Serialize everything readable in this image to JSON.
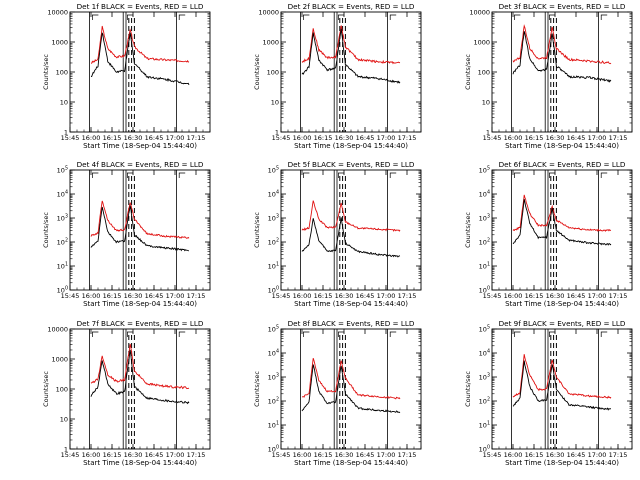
{
  "figure": {
    "x_axis_label": "Start Time (18-Sep-04 15:44:40)",
    "y_axis_label": "Counts/sec",
    "x_tick_labels": [
      "15:45",
      "16:00",
      "16:15",
      "16:30",
      "16:45",
      "17:00",
      "17:15"
    ],
    "colors": {
      "events": "#000000",
      "lld": "#e01010"
    }
  },
  "chart_data": [
    {
      "type": "line",
      "title": "Det 1f  BLACK = Events, RED = LLD",
      "y_axis": "log-linear",
      "y_tick_labels": [
        "1",
        "10",
        "100",
        "1000",
        "10000"
      ],
      "ylim": [
        1,
        10000
      ],
      "x": [
        "16:00",
        "16:05",
        "16:08",
        "16:12",
        "16:18",
        "16:24",
        "16:28",
        "16:31",
        "16:40",
        "16:55",
        "17:10"
      ],
      "series": [
        {
          "color": "red",
          "values": [
            200,
            260,
            3200,
            600,
            320,
            340,
            2500,
            700,
            280,
            250,
            230
          ]
        },
        {
          "color": "black",
          "values": [
            70,
            160,
            2200,
            230,
            100,
            110,
            2000,
            200,
            70,
            55,
            40
          ]
        }
      ]
    },
    {
      "type": "line",
      "title": "Det 2f  BLACK = Events, RED = LLD",
      "y_axis": "log-linear",
      "y_tick_labels": [
        "1",
        "10",
        "100",
        "1000",
        "10000"
      ],
      "ylim": [
        1,
        10000
      ],
      "x": [
        "16:00",
        "16:05",
        "16:08",
        "16:12",
        "16:18",
        "16:24",
        "16:28",
        "16:31",
        "16:40",
        "16:55",
        "17:10"
      ],
      "series": [
        {
          "color": "red",
          "values": [
            220,
            280,
            2800,
            550,
            300,
            310,
            3600,
            700,
            260,
            220,
            200
          ]
        },
        {
          "color": "black",
          "values": [
            80,
            150,
            2000,
            250,
            120,
            130,
            2800,
            180,
            70,
            60,
            45
          ]
        }
      ]
    },
    {
      "type": "line",
      "title": "Det 3f  BLACK = Events, RED = LLD",
      "y_axis": "log-linear",
      "y_tick_labels": [
        "1",
        "10",
        "100",
        "1000",
        "10000"
      ],
      "ylim": [
        1,
        10000
      ],
      "x": [
        "16:00",
        "16:05",
        "16:08",
        "16:12",
        "16:18",
        "16:24",
        "16:28",
        "16:31",
        "16:40",
        "16:55",
        "17:10"
      ],
      "series": [
        {
          "color": "red",
          "values": [
            230,
            300,
            3500,
            600,
            280,
            300,
            3300,
            600,
            260,
            230,
            200
          ]
        },
        {
          "color": "black",
          "values": [
            90,
            170,
            2300,
            280,
            110,
            120,
            2000,
            160,
            70,
            65,
            50
          ]
        }
      ]
    },
    {
      "type": "line",
      "title": "Det 4f  BLACK = Events, RED = LLD",
      "y_axis": "log-power",
      "y_tick_labels": [
        "10^0",
        "10^1",
        "10^2",
        "10^3",
        "10^4",
        "10^5"
      ],
      "ylim": [
        1,
        100000
      ],
      "x": [
        "16:00",
        "16:05",
        "16:08",
        "16:12",
        "16:18",
        "16:24",
        "16:28",
        "16:31",
        "16:40",
        "16:55",
        "17:10"
      ],
      "series": [
        {
          "color": "red",
          "values": [
            180,
            240,
            5500,
            800,
            300,
            320,
            4500,
            900,
            220,
            170,
            150
          ]
        },
        {
          "color": "black",
          "values": [
            60,
            110,
            3000,
            260,
            100,
            110,
            3500,
            200,
            70,
            55,
            45
          ]
        }
      ]
    },
    {
      "type": "line",
      "title": "Det 5f  BLACK = Events, RED = LLD",
      "y_axis": "log-power",
      "y_tick_labels": [
        "10^0",
        "10^1",
        "10^2",
        "10^3",
        "10^4",
        "10^5"
      ],
      "ylim": [
        1,
        100000
      ],
      "x": [
        "16:00",
        "16:05",
        "16:08",
        "16:12",
        "16:18",
        "16:24",
        "16:28",
        "16:31",
        "16:40",
        "16:55",
        "17:10"
      ],
      "series": [
        {
          "color": "red",
          "values": [
            320,
            380,
            5000,
            900,
            400,
            410,
            4000,
            700,
            380,
            340,
            300
          ]
        },
        {
          "color": "black",
          "values": [
            40,
            80,
            900,
            120,
            40,
            45,
            1000,
            90,
            40,
            30,
            25
          ]
        }
      ]
    },
    {
      "type": "line",
      "title": "Det 6f  BLACK = Events, RED = LLD",
      "y_axis": "log-power",
      "y_tick_labels": [
        "10^0",
        "10^1",
        "10^2",
        "10^3",
        "10^4",
        "10^5"
      ],
      "ylim": [
        1,
        100000
      ],
      "x": [
        "16:00",
        "16:05",
        "16:08",
        "16:12",
        "16:18",
        "16:24",
        "16:28",
        "16:31",
        "16:40",
        "16:55",
        "17:10"
      ],
      "series": [
        {
          "color": "red",
          "values": [
            300,
            400,
            9000,
            1500,
            500,
            480,
            3000,
            800,
            400,
            320,
            300
          ]
        },
        {
          "color": "black",
          "values": [
            80,
            200,
            6000,
            600,
            150,
            160,
            2500,
            300,
            120,
            90,
            80
          ]
        }
      ]
    },
    {
      "type": "line",
      "title": "Det 7f  BLACK = Events, RED = LLD",
      "y_axis": "log-linear",
      "y_tick_labels": [
        "1",
        "10",
        "100",
        "1000",
        "10000"
      ],
      "ylim": [
        1,
        10000
      ],
      "x": [
        "16:00",
        "16:05",
        "16:08",
        "16:12",
        "16:18",
        "16:24",
        "16:28",
        "16:31",
        "16:40",
        "16:55",
        "17:10"
      ],
      "series": [
        {
          "color": "red",
          "values": [
            150,
            220,
            1300,
            300,
            180,
            200,
            3200,
            400,
            150,
            120,
            110
          ]
        },
        {
          "color": "black",
          "values": [
            60,
            120,
            900,
            150,
            70,
            80,
            2000,
            120,
            50,
            40,
            35
          ]
        }
      ]
    },
    {
      "type": "line",
      "title": "Det 8f  BLACK = Events, RED = LLD",
      "y_axis": "log-power",
      "y_tick_labels": [
        "10^0",
        "10^1",
        "10^2",
        "10^3",
        "10^4",
        "10^5"
      ],
      "ylim": [
        1,
        100000
      ],
      "x": [
        "16:00",
        "16:05",
        "16:08",
        "16:12",
        "16:18",
        "16:24",
        "16:28",
        "16:31",
        "16:40",
        "16:55",
        "17:10"
      ],
      "series": [
        {
          "color": "red",
          "values": [
            140,
            200,
            6500,
            700,
            250,
            260,
            5000,
            900,
            180,
            150,
            130
          ]
        },
        {
          "color": "black",
          "values": [
            40,
            90,
            3500,
            250,
            80,
            90,
            3000,
            200,
            50,
            40,
            35
          ]
        }
      ]
    },
    {
      "type": "line",
      "title": "Det 9f  BLACK = Events, RED = LLD",
      "y_axis": "log-power",
      "y_tick_labels": [
        "10^0",
        "10^1",
        "10^2",
        "10^3",
        "10^4",
        "10^5"
      ],
      "ylim": [
        1,
        100000
      ],
      "x": [
        "16:00",
        "16:05",
        "16:08",
        "16:12",
        "16:18",
        "16:24",
        "16:28",
        "16:31",
        "16:40",
        "16:55",
        "17:10"
      ],
      "series": [
        {
          "color": "red",
          "values": [
            150,
            220,
            8500,
            1200,
            300,
            320,
            5500,
            1000,
            200,
            160,
            140
          ]
        },
        {
          "color": "black",
          "values": [
            60,
            130,
            4500,
            400,
            100,
            110,
            3500,
            300,
            70,
            55,
            45
          ]
        }
      ]
    }
  ]
}
